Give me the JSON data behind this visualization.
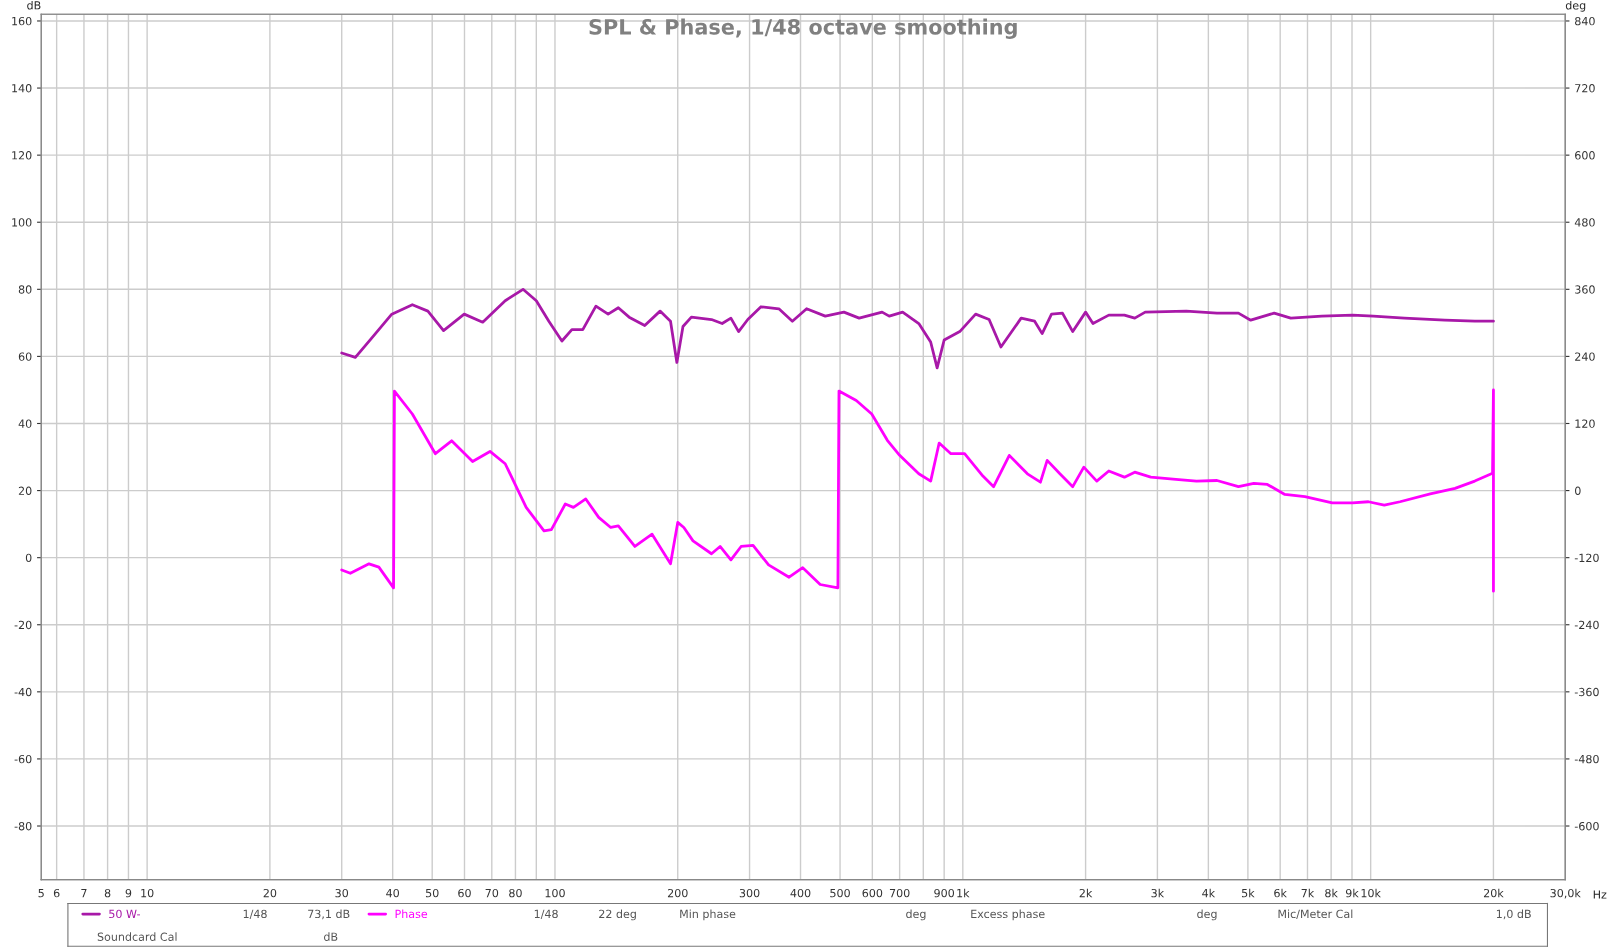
{
  "chart_data": {
    "type": "line",
    "title": "SPL & Phase, 1/48 octave smoothing",
    "xlabel": "Hz",
    "ylabel": "dB",
    "y2label": "deg",
    "log": "x",
    "grid": true,
    "legend": "bottom",
    "marker": "none",
    "line_style": "solid",
    "xlim": [
      5.5,
      30000
    ],
    "xticks": [
      {
        "value": 5.5,
        "label": "5"
      },
      6,
      7,
      8,
      9,
      10,
      20,
      30,
      40,
      50,
      60,
      70,
      80,
      {
        "value": 90,
        "label": null
      },
      100,
      200,
      300,
      400,
      500,
      600,
      700,
      {
        "value": 800,
        "label": null
      },
      900,
      {
        "value": 1000,
        "label": "1k"
      },
      {
        "value": 2000,
        "label": "2k"
      },
      {
        "value": 3000,
        "label": "3k"
      },
      {
        "value": 4000,
        "label": "4k"
      },
      {
        "value": 5000,
        "label": "5k"
      },
      {
        "value": 6000,
        "label": "6k"
      },
      {
        "value": 7000,
        "label": "7k"
      },
      {
        "value": 8000,
        "label": "8k"
      },
      {
        "value": 9000,
        "label": "9k"
      },
      {
        "value": 10000,
        "label": "10k"
      },
      {
        "value": 20000,
        "label": "20k"
      },
      {
        "value": 30000,
        "label": "30,0k"
      }
    ],
    "ylim": [
      -96,
      162
    ],
    "yticks": [
      -80,
      -60,
      -40,
      -20,
      0,
      20,
      40,
      60,
      80,
      100,
      120,
      140,
      160
    ],
    "y2lim": [
      -696,
      852
    ],
    "y2ticks": [
      -600,
      -480,
      -360,
      -240,
      -120,
      0,
      120,
      240,
      360,
      480,
      600,
      720,
      840
    ],
    "series": [
      {
        "name": "50 W-",
        "color": "#a818a8",
        "x": [
          30,
          32.4,
          35.4,
          39.8,
          44.7,
          48.8,
          53.3,
          59.9,
          66.5,
          75.5,
          83.5,
          90,
          96.6,
          104,
          110,
          117,
          126,
          135,
          143,
          152,
          166,
          181,
          192,
          199,
          206,
          216,
          242,
          257,
          270,
          282,
          297,
          320,
          354,
          382,
          414,
          460,
          511,
          557,
          634,
          660,
          712,
          780,
          834,
          865,
          900,
          983,
          1075,
          1160,
          1240,
          1390,
          1500,
          1565,
          1650,
          1755,
          1860,
          2000,
          2085,
          2280,
          2490,
          2640,
          2800,
          3530,
          4200,
          4740,
          5080,
          5800,
          6370,
          7590,
          9030,
          10150,
          12100,
          15200,
          18000,
          20000
        ],
        "values": [
          61,
          59.7,
          65.2,
          72.6,
          75.4,
          73.5,
          67.7,
          72.6,
          70.2,
          76.6,
          80,
          76.6,
          70.5,
          64.6,
          68,
          68,
          75,
          72.6,
          74.5,
          71.7,
          69.2,
          73.5,
          70.5,
          58.2,
          68.9,
          71.7,
          71,
          69.8,
          71.4,
          67.4,
          71,
          74.8,
          74.2,
          70.5,
          74.2,
          72,
          73.2,
          71.4,
          73.2,
          72,
          73.2,
          69.8,
          64.3,
          56.6,
          64.9,
          67.4,
          72.6,
          71,
          62.8,
          71.4,
          70.5,
          66.8,
          72.6,
          72.9,
          67.4,
          73.2,
          69.8,
          72.3,
          72.3,
          71.4,
          73.2,
          73.5,
          72.9,
          72.9,
          70.8,
          72.9,
          71.4,
          72,
          72.3,
          72,
          71.4,
          70.8,
          70.5,
          70.5
        ]
      },
      {
        "name": "Phase",
        "color": "#ff00ff",
        "axis": "y2",
        "x": [
          30,
          31.5,
          35,
          37,
          40.2,
          40.4,
          44.7,
          50.9,
          55.8,
          62.8,
          69.3,
          75.5,
          85,
          94,
          98,
          106,
          111,
          119,
          128,
          137,
          143,
          157,
          173,
          192,
          200,
          207,
          218,
          242,
          254,
          270,
          286,
          306,
          334,
          375,
          405,
          447,
          494,
          497,
          548,
          598,
          653,
          700,
          780,
          834,
          875,
          935,
          1010,
          1120,
          1190,
          1300,
          1440,
          1550,
          1610,
          1730,
          1860,
          1980,
          2130,
          2280,
          2490,
          2640,
          2890,
          3330,
          3740,
          4200,
          4740,
          5170,
          5580,
          6160,
          6900,
          8050,
          9030,
          9870,
          10800,
          11800,
          14000,
          16100,
          18000,
          19900,
          20000,
          20000
        ],
        "values": [
          -142,
          -148,
          -131,
          -137,
          -174,
          178,
          137,
          66,
          89,
          52,
          70,
          48,
          -30,
          -72,
          -70,
          -24,
          -30,
          -15,
          -48,
          -66,
          -63,
          -100,
          -78,
          -131,
          -57,
          -66,
          -90,
          -113,
          -100,
          -124,
          -100,
          -98,
          -133,
          -155,
          -138,
          -168,
          -174,
          178,
          161,
          137,
          90,
          63,
          30,
          17,
          85,
          66,
          66,
          26,
          7,
          63,
          30,
          15,
          54,
          30,
          7,
          42,
          17,
          35,
          24,
          33,
          24,
          20,
          17,
          18,
          7,
          13,
          11,
          -7,
          -11,
          -22,
          -22,
          -20,
          -26,
          -20,
          -6,
          4,
          17,
          31,
          180,
          -180
        ]
      }
    ],
    "annotations": [
      "1/48",
      "73,1 dB",
      "1/48",
      "22 deg",
      "Min phase",
      "deg",
      "Excess phase",
      "deg",
      "Mic/Meter Cal",
      "1,0 dB",
      "Soundcard Cal",
      "dB"
    ]
  }
}
